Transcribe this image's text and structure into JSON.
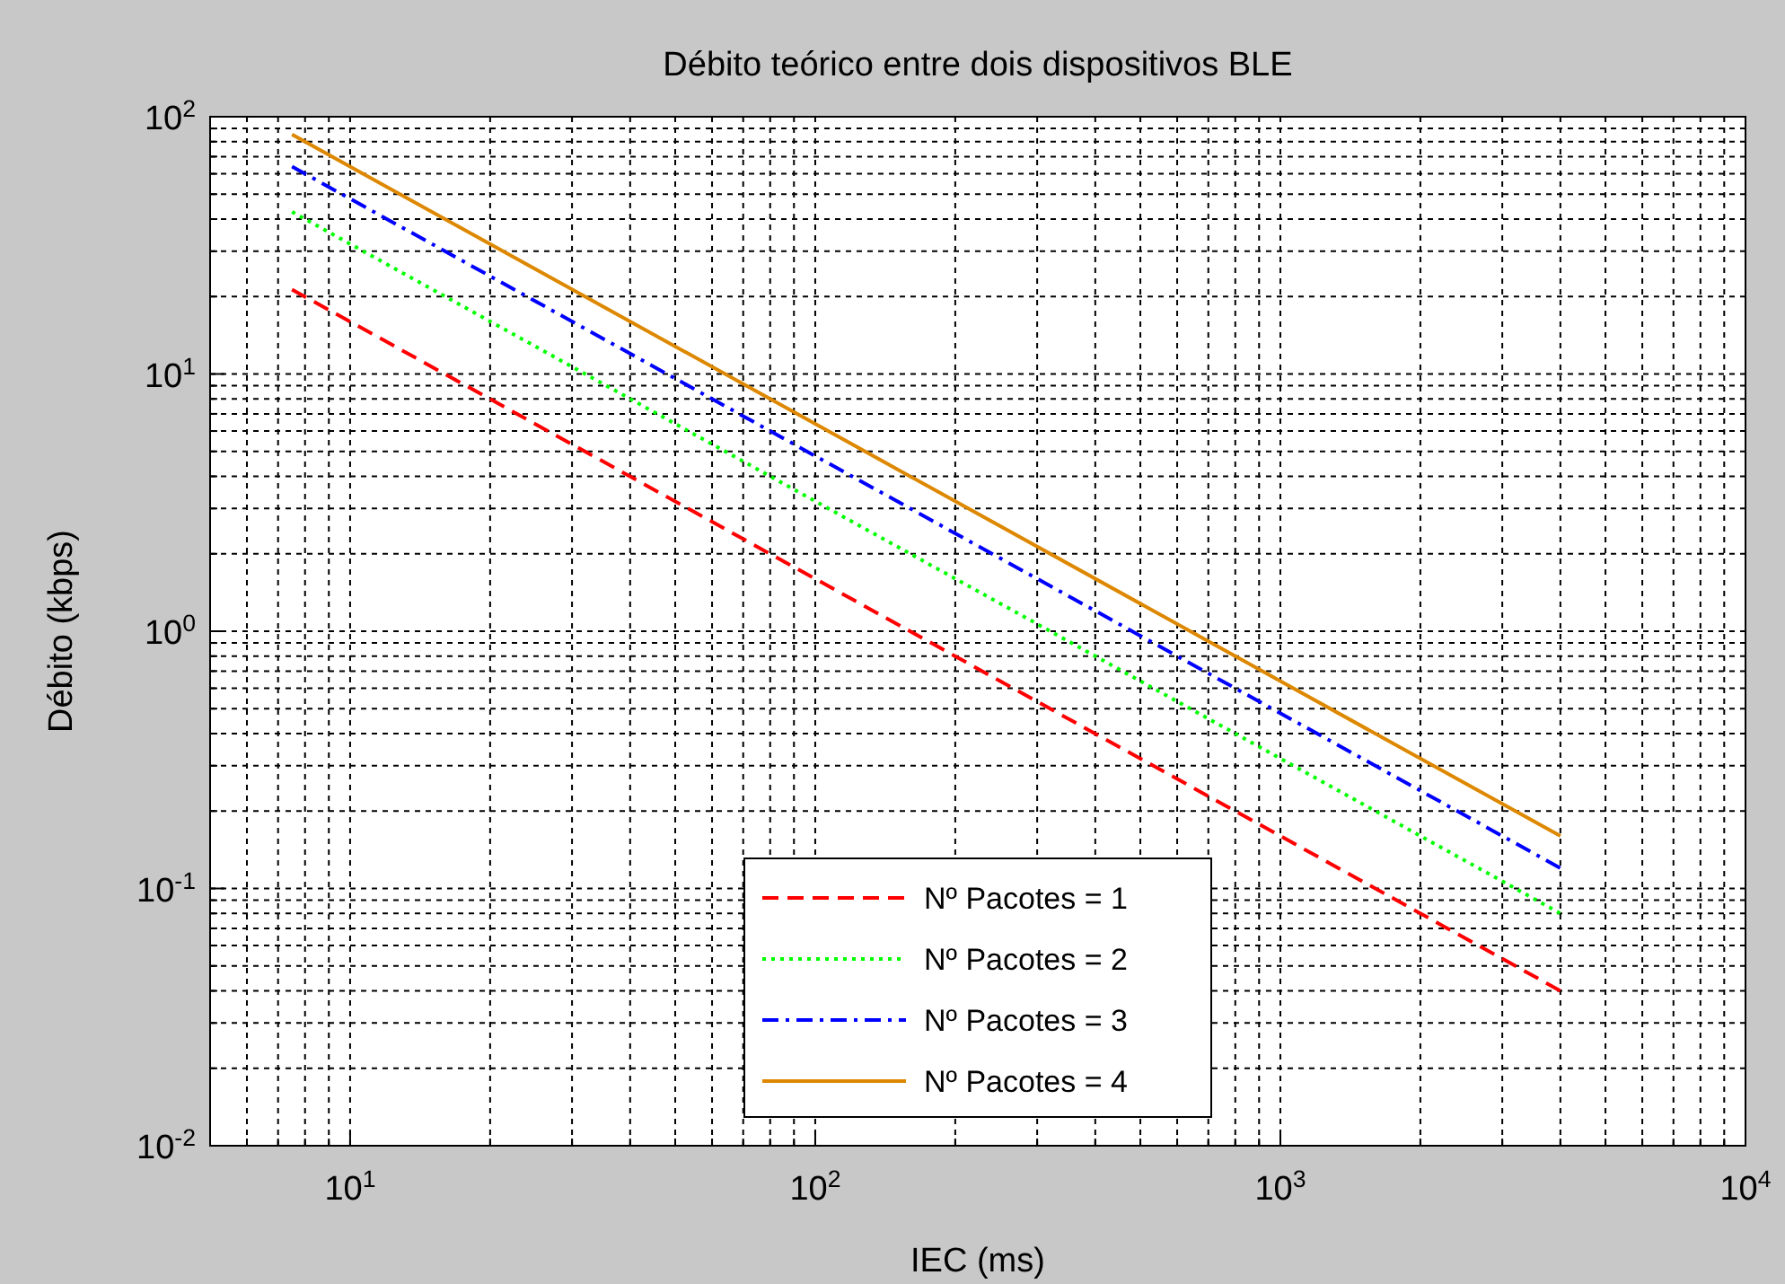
{
  "chart_data": {
    "type": "line",
    "title": "Débito teórico entre dois dispositivos BLE",
    "xlabel": "IEC (ms)",
    "ylabel": "Débito (kbps)",
    "x": [
      7.5,
      4000
    ],
    "series": [
      {
        "name": "Nº Pacotes = 1",
        "color": "#ff0000",
        "line_style": "dashed",
        "values": [
          21.3,
          0.04
        ]
      },
      {
        "name": "Nº Pacotes = 2",
        "color": "#00ff00",
        "line_style": "dotted",
        "values": [
          42.7,
          0.08
        ]
      },
      {
        "name": "Nº Pacotes = 3",
        "color": "#0000ff",
        "line_style": "dashdot",
        "values": [
          64,
          0.12
        ]
      },
      {
        "name": "Nº Pacotes = 4",
        "color": "#dd8800",
        "line_style": "solid",
        "values": [
          85.3,
          0.16
        ]
      }
    ],
    "log": "xy",
    "xlim": [
      5,
      10000
    ],
    "ylim": [
      0.01,
      100
    ],
    "xticks": [
      {
        "value": 6,
        "label": null
      },
      {
        "value": 7,
        "label": null
      },
      {
        "value": 8,
        "label": null
      },
      {
        "value": 9,
        "label": null
      },
      {
        "value": 10,
        "label": "10$^{1}$"
      },
      {
        "value": 20,
        "label": null
      },
      {
        "value": 30,
        "label": null
      },
      {
        "value": 40,
        "label": null
      },
      {
        "value": 50,
        "label": null
      },
      {
        "value": 60,
        "label": null
      },
      {
        "value": 70,
        "label": null
      },
      {
        "value": 80,
        "label": null
      },
      {
        "value": 90,
        "label": null
      },
      {
        "value": 100,
        "label": "10$^{2}$"
      },
      {
        "value": 200,
        "label": null
      },
      {
        "value": 300,
        "label": null
      },
      {
        "value": 400,
        "label": null
      },
      {
        "value": 500,
        "label": null
      },
      {
        "value": 600,
        "label": null
      },
      {
        "value": 700,
        "label": null
      },
      {
        "value": 800,
        "label": null
      },
      {
        "value": 900,
        "label": null
      },
      {
        "value": 1000,
        "label": "10$^{3}$"
      },
      {
        "value": 2000,
        "label": null
      },
      {
        "value": 3000,
        "label": null
      },
      {
        "value": 4000,
        "label": null
      },
      {
        "value": 5000,
        "label": null
      },
      {
        "value": 6000,
        "label": null
      },
      {
        "value": 7000,
        "label": null
      },
      {
        "value": 8000,
        "label": null
      },
      {
        "value": 9000,
        "label": null
      },
      {
        "value": 10000,
        "label": "10$^{4}$"
      }
    ],
    "yticks": [
      {
        "value": 0.01,
        "label": "10$^{-2}$"
      },
      {
        "value": 0.02,
        "label": null
      },
      {
        "value": 0.03,
        "label": null
      },
      {
        "value": 0.04,
        "label": null
      },
      {
        "value": 0.05,
        "label": null
      },
      {
        "value": 0.06,
        "label": null
      },
      {
        "value": 0.07,
        "label": null
      },
      {
        "value": 0.08,
        "label": null
      },
      {
        "value": 0.09,
        "label": null
      },
      {
        "value": 0.1,
        "label": "10$^{-1}$"
      },
      {
        "value": 0.2,
        "label": null
      },
      {
        "value": 0.3,
        "label": null
      },
      {
        "value": 0.4,
        "label": null
      },
      {
        "value": 0.5,
        "label": null
      },
      {
        "value": 0.6,
        "label": null
      },
      {
        "value": 0.7,
        "label": null
      },
      {
        "value": 0.8,
        "label": null
      },
      {
        "value": 0.9,
        "label": null
      },
      {
        "value": 1,
        "label": "10$^{0}$"
      },
      {
        "value": 2,
        "label": null
      },
      {
        "value": 3,
        "label": null
      },
      {
        "value": 4,
        "label": null
      },
      {
        "value": 5,
        "label": null
      },
      {
        "value": 6,
        "label": null
      },
      {
        "value": 7,
        "label": null
      },
      {
        "value": 8,
        "label": null
      },
      {
        "value": 9,
        "label": null
      },
      {
        "value": 10,
        "label": "10$^{1}$"
      },
      {
        "value": 20,
        "label": null
      },
      {
        "value": 30,
        "label": null
      },
      {
        "value": 40,
        "label": null
      },
      {
        "value": 50,
        "label": null
      },
      {
        "value": 60,
        "label": null
      },
      {
        "value": 70,
        "label": null
      },
      {
        "value": 80,
        "label": null
      },
      {
        "value": 90,
        "label": null
      },
      {
        "value": 100,
        "label": "10$^{2}$"
      }
    ],
    "grid": true,
    "legend": "bottom"
  }
}
